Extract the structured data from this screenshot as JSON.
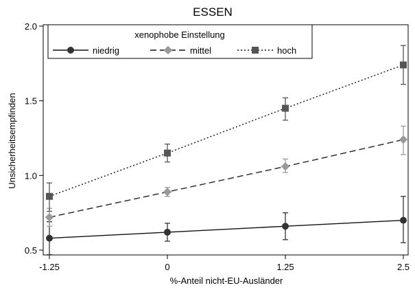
{
  "chart_data": {
    "type": "line",
    "title": "ESSEN",
    "xlabel": "%-Anteil nicht-EU-Ausländer",
    "ylabel": "Unsicherheitsempfinden",
    "x": [
      -1.25,
      0,
      1.25,
      2.5
    ],
    "x_tick_labels": [
      "-1.25",
      "0",
      "1.25",
      "2.5"
    ],
    "xlim": [
      -1.25,
      2.5
    ],
    "ylim": [
      0.5,
      2.0
    ],
    "y_ticks": [
      0.5,
      1.0,
      1.5,
      2.0
    ],
    "y_tick_labels": [
      "0.5",
      "1.0",
      "1.5",
      "2.0"
    ],
    "grid": false,
    "legend": {
      "title": "xenophobe Einstellung",
      "placement": "top-left"
    },
    "series": [
      {
        "name": "niedrig",
        "values": [
          0.58,
          0.62,
          0.66,
          0.7
        ],
        "ci_low": [
          0.47,
          0.56,
          0.57,
          0.55
        ],
        "ci_high": [
          0.69,
          0.68,
          0.75,
          0.86
        ],
        "color": "#333333",
        "marker": "circle",
        "dash": "solid"
      },
      {
        "name": "mittel",
        "values": [
          0.72,
          0.89,
          1.06,
          1.24
        ],
        "ci_low": [
          0.66,
          0.86,
          1.02,
          1.14
        ],
        "ci_high": [
          0.78,
          0.92,
          1.11,
          1.33
        ],
        "color": "#999999",
        "marker": "diamond",
        "dash": "dashed"
      },
      {
        "name": "hoch",
        "values": [
          0.86,
          1.15,
          1.45,
          1.74
        ],
        "ci_low": [
          0.76,
          1.09,
          1.37,
          1.61
        ],
        "ci_high": [
          0.95,
          1.21,
          1.52,
          1.87
        ],
        "color": "#555555",
        "marker": "square",
        "dash": "dotted"
      }
    ]
  }
}
